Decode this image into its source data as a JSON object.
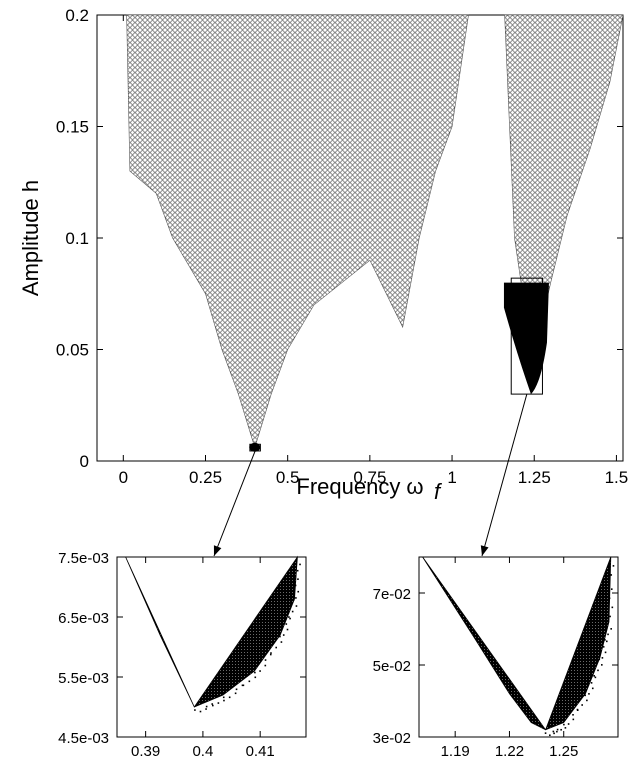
{
  "chart_data": [
    {
      "type": "scatter",
      "title": "",
      "xlabel": "Frequency ω",
      "xlabel_subscript": "f",
      "ylabel": "Amplitude h",
      "xlim": [
        -0.08,
        1.52
      ],
      "ylim": [
        0,
        0.2
      ],
      "xticks": [
        0,
        0.25,
        0.5,
        0.75,
        1,
        1.25,
        1.5
      ],
      "xtick_labels": [
        "0",
        "0.25",
        "0.5",
        "0.75",
        "1",
        "1.25",
        "1.5"
      ],
      "yticks": [
        0,
        0.05,
        0.1,
        0.15,
        0.2
      ],
      "ytick_labels": [
        "0",
        "0.05",
        "0.1",
        "0.15",
        "0.2"
      ],
      "grid": false,
      "marker": "open-circle",
      "regions": [
        {
          "name": "",
          "boundary_left": [
            [
              0.4,
              0.006
            ],
            [
              0.35,
              0.03
            ],
            [
              0.3,
              0.05
            ],
            [
              0.25,
              0.075
            ],
            [
              0.15,
              0.1
            ],
            [
              0.1,
              0.12
            ],
            [
              0.02,
              0.13
            ],
            [
              0.01,
              0.2
            ]
          ],
          "boundary_right": [
            [
              0.4,
              0.006
            ],
            [
              0.45,
              0.03
            ],
            [
              0.5,
              0.05
            ],
            [
              0.58,
              0.07
            ],
            [
              0.75,
              0.09
            ],
            [
              0.85,
              0.06
            ],
            [
              0.9,
              0.1
            ],
            [
              0.95,
              0.13
            ],
            [
              1.0,
              0.15
            ],
            [
              1.05,
              0.2
            ]
          ]
        },
        {
          "name": "",
          "boundary_left": [
            [
              1.24,
              0.03
            ],
            [
              1.21,
              0.08
            ],
            [
              1.19,
              0.1
            ],
            [
              1.16,
              0.2
            ]
          ],
          "boundary_right": [
            [
              1.24,
              0.03
            ],
            [
              1.27,
              0.06
            ],
            [
              1.3,
              0.08
            ],
            [
              1.35,
              0.11
            ],
            [
              1.42,
              0.14
            ],
            [
              1.48,
              0.17
            ],
            [
              1.52,
              0.2
            ]
          ]
        }
      ],
      "solid_regions": [
        {
          "x_center": 0.4,
          "y_top": 0.0075,
          "y_bottom": 0.0048
        },
        {
          "x_center": 1.24,
          "y_top": 0.08,
          "y_bottom": 0.03
        }
      ],
      "zoom_boxes": [
        {
          "xlim": [
            0.385,
            0.417
          ],
          "ylim": [
            0.0045,
            0.0075
          ]
        },
        {
          "xlim": [
            1.18,
            1.275
          ],
          "ylim": [
            0.03,
            0.082
          ]
        }
      ]
    },
    {
      "type": "scatter",
      "title": "",
      "xlabel": "",
      "ylabel": "",
      "xlim": [
        0.385,
        0.418
      ],
      "ylim": [
        0.0045,
        0.0075
      ],
      "xticks": [
        0.39,
        0.4,
        0.41
      ],
      "xtick_labels": [
        "0.39",
        "0.4",
        "0.41"
      ],
      "yticks": [
        0.0045,
        0.0055,
        0.0065,
        0.0075
      ],
      "ytick_labels": [
        "4.5e-03",
        "5.5e-03",
        "6.5e-03",
        "7.5e-03"
      ],
      "grid": false,
      "filled_region": {
        "boundary_left": [
          [
            0.3865,
            0.0075
          ],
          [
            0.3925,
            0.0062
          ],
          [
            0.3965,
            0.0054
          ],
          [
            0.3985,
            0.005
          ]
        ],
        "boundary_right": [
          [
            0.3985,
            0.005
          ],
          [
            0.4035,
            0.0052
          ],
          [
            0.409,
            0.0056
          ],
          [
            0.4135,
            0.0062
          ],
          [
            0.416,
            0.0068
          ],
          [
            0.4165,
            0.0075
          ]
        ]
      }
    },
    {
      "type": "scatter",
      "title": "",
      "xlabel": "",
      "ylabel": "",
      "xlim": [
        1.17,
        1.28
      ],
      "ylim": [
        0.03,
        0.08
      ],
      "xticks": [
        1.19,
        1.22,
        1.25
      ],
      "xtick_labels": [
        "1.19",
        "1.22",
        "1.25"
      ],
      "yticks": [
        0.03,
        0.05,
        0.07
      ],
      "ytick_labels": [
        "3e-02",
        "5e-02",
        "7e-02"
      ],
      "grid": false,
      "filled_region": {
        "boundary_left": [
          [
            1.172,
            0.08
          ],
          [
            1.2,
            0.058
          ],
          [
            1.22,
            0.042
          ],
          [
            1.232,
            0.034
          ],
          [
            1.24,
            0.032
          ]
        ],
        "boundary_right": [
          [
            1.24,
            0.032
          ],
          [
            1.25,
            0.034
          ],
          [
            1.262,
            0.042
          ],
          [
            1.27,
            0.052
          ],
          [
            1.275,
            0.062
          ],
          [
            1.276,
            0.08
          ]
        ]
      }
    }
  ]
}
